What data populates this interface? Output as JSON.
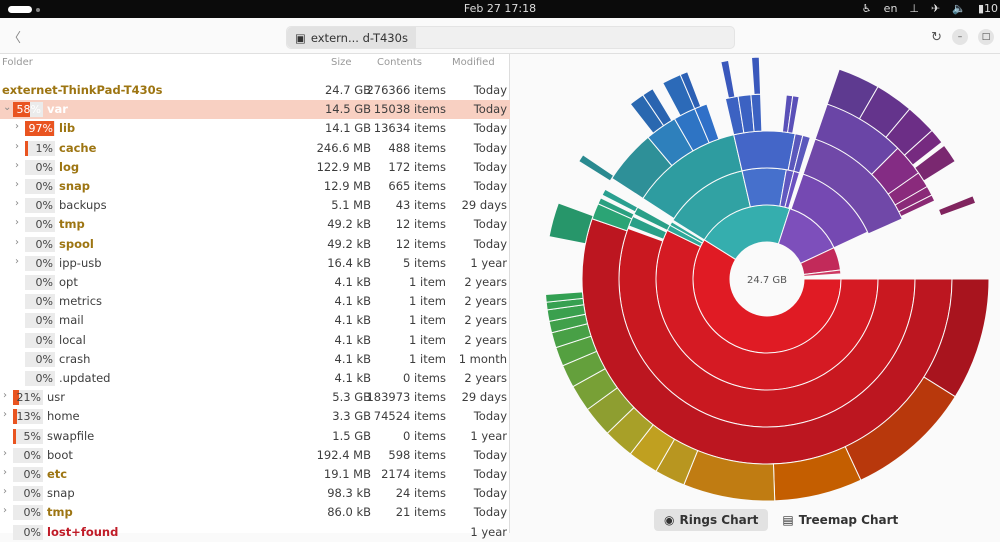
{
  "topbar": {
    "clock": "Feb 27  17:18",
    "lang": "en",
    "battery": "10"
  },
  "header": {
    "back_icon": "chevron-left",
    "location": "extern... d-T430s",
    "refresh_icon": "refresh",
    "min_icon": "minimize",
    "max_icon": "maximize"
  },
  "columns": {
    "folder": "Folder",
    "size": "Size",
    "contents": "Contents",
    "modified": "Modified"
  },
  "rows": [
    {
      "name": "externet-ThinkPad-T430s",
      "size": "24.7 GB",
      "contents": "276366 items",
      "modified": "Today",
      "depth": 0,
      "style": "gold"
    },
    {
      "name": "var",
      "pct": "58%",
      "fill": 58,
      "size": "14.5 GB",
      "contents": "15038 items",
      "modified": "Today",
      "depth": 1,
      "expanded": true,
      "selected": true,
      "style": "gold"
    },
    {
      "name": "lib",
      "pct": "97%",
      "fill": 97,
      "size": "14.1 GB",
      "contents": "13634 items",
      "modified": "Today",
      "depth": 2,
      "chev": true,
      "style": "gold"
    },
    {
      "name": "cache",
      "pct": "1%",
      "fill": 1,
      "size": "246.6 MB",
      "contents": "488 items",
      "modified": "Today",
      "depth": 2,
      "chev": true,
      "style": "gold"
    },
    {
      "name": "log",
      "pct": "0%",
      "fill": 0,
      "size": "122.9 MB",
      "contents": "172 items",
      "modified": "Today",
      "depth": 2,
      "chev": true,
      "style": "gold"
    },
    {
      "name": "snap",
      "pct": "0%",
      "fill": 0,
      "size": "12.9 MB",
      "contents": "665 items",
      "modified": "Today",
      "depth": 2,
      "chev": true,
      "style": "gold"
    },
    {
      "name": "backups",
      "pct": "0%",
      "fill": 0,
      "size": "5.1 MB",
      "contents": "43 items",
      "modified": "29 days",
      "depth": 2,
      "chev": true,
      "style": ""
    },
    {
      "name": "tmp",
      "pct": "0%",
      "fill": 0,
      "size": "49.2 kB",
      "contents": "12 items",
      "modified": "Today",
      "depth": 2,
      "chev": true,
      "style": "gold"
    },
    {
      "name": "spool",
      "pct": "0%",
      "fill": 0,
      "size": "49.2 kB",
      "contents": "12 items",
      "modified": "Today",
      "depth": 2,
      "chev": true,
      "style": "gold"
    },
    {
      "name": "ipp-usb",
      "pct": "0%",
      "fill": 0,
      "size": "16.4 kB",
      "contents": "5 items",
      "modified": "1 year",
      "depth": 2,
      "chev": true,
      "style": ""
    },
    {
      "name": "opt",
      "pct": "0%",
      "fill": 0,
      "size": "4.1 kB",
      "contents": "1 item",
      "modified": "2 years",
      "depth": 2,
      "style": ""
    },
    {
      "name": "metrics",
      "pct": "0%",
      "fill": 0,
      "size": "4.1 kB",
      "contents": "1 item",
      "modified": "2 years",
      "depth": 2,
      "style": ""
    },
    {
      "name": "mail",
      "pct": "0%",
      "fill": 0,
      "size": "4.1 kB",
      "contents": "1 item",
      "modified": "2 years",
      "depth": 2,
      "style": ""
    },
    {
      "name": "local",
      "pct": "0%",
      "fill": 0,
      "size": "4.1 kB",
      "contents": "1 item",
      "modified": "2 years",
      "depth": 2,
      "style": ""
    },
    {
      "name": "crash",
      "pct": "0%",
      "fill": 0,
      "size": "4.1 kB",
      "contents": "1 item",
      "modified": "1 month",
      "depth": 2,
      "style": ""
    },
    {
      "name": ".updated",
      "pct": "0%",
      "fill": 0,
      "size": "4.1 kB",
      "contents": "0 items",
      "modified": "2 years",
      "depth": 2,
      "style": ""
    },
    {
      "name": "usr",
      "pct": "21%",
      "fill": 21,
      "size": "5.3 GB",
      "contents": "183973 items",
      "modified": "29 days",
      "depth": 1,
      "chev": true,
      "style": ""
    },
    {
      "name": "home",
      "pct": "13%",
      "fill": 13,
      "size": "3.3 GB",
      "contents": "74524 items",
      "modified": "Today",
      "depth": 1,
      "chev": true,
      "style": ""
    },
    {
      "name": "swapfile",
      "pct": "5%",
      "fill": 5,
      "size": "1.5 GB",
      "contents": "0 items",
      "modified": "1 year",
      "depth": 1,
      "style": ""
    },
    {
      "name": "boot",
      "pct": "0%",
      "fill": 0,
      "size": "192.4 MB",
      "contents": "598 items",
      "modified": "Today",
      "depth": 1,
      "chev": true,
      "style": ""
    },
    {
      "name": "etc",
      "pct": "0%",
      "fill": 0,
      "size": "19.1 MB",
      "contents": "2174 items",
      "modified": "Today",
      "depth": 1,
      "chev": true,
      "style": "gold"
    },
    {
      "name": "snap",
      "pct": "0%",
      "fill": 0,
      "size": "98.3 kB",
      "contents": "24 items",
      "modified": "Today",
      "depth": 1,
      "chev": true,
      "style": ""
    },
    {
      "name": "tmp",
      "pct": "0%",
      "fill": 0,
      "size": "86.0 kB",
      "contents": "21 items",
      "modified": "Today",
      "depth": 1,
      "chev": true,
      "style": "gold"
    },
    {
      "name": "lost+found",
      "pct": "0%",
      "fill": 0,
      "size": "",
      "contents": "",
      "modified": "1 year",
      "depth": 1,
      "style": "red"
    }
  ],
  "chart": {
    "center_label": "24.7 GB",
    "rings_label": "Rings Chart",
    "treemap_label": "Treemap Chart"
  },
  "chart_data": {
    "type": "sunburst",
    "total": "24.7 GB",
    "segments": [
      {
        "ring": 1,
        "start_deg": 0,
        "end_deg": 212,
        "color": "#e01b24"
      },
      {
        "ring": 1,
        "start_deg": 212,
        "end_deg": 288,
        "color": "#35aeae"
      },
      {
        "ring": 1,
        "start_deg": 288,
        "end_deg": 335,
        "color": "#7d4fbb"
      },
      {
        "ring": 1,
        "start_deg": 335,
        "end_deg": 353,
        "color": "#c22a5a"
      },
      {
        "ring": 1,
        "start_deg": 353,
        "end_deg": 356,
        "color": "#cf3a63"
      },
      {
        "ring": 2,
        "start_deg": 0,
        "end_deg": 206,
        "color": "#d51a23"
      },
      {
        "ring": 2,
        "start_deg": 206,
        "end_deg": 209,
        "color": "#2fa898"
      },
      {
        "ring": 2,
        "start_deg": 209,
        "end_deg": 211,
        "color": "#2fa898"
      },
      {
        "ring": 2,
        "start_deg": 212,
        "end_deg": 257,
        "color": "#31a2a3"
      },
      {
        "ring": 2,
        "start_deg": 257,
        "end_deg": 280,
        "color": "#4670cc"
      },
      {
        "ring": 2,
        "start_deg": 280,
        "end_deg": 284,
        "color": "#6058c0"
      },
      {
        "ring": 2,
        "start_deg": 284,
        "end_deg": 287,
        "color": "#6a50c0"
      },
      {
        "ring": 2,
        "start_deg": 289,
        "end_deg": 335,
        "color": "#7549b2"
      },
      {
        "ring": 3,
        "start_deg": 0,
        "end_deg": 200,
        "color": "#c91820"
      },
      {
        "ring": 3,
        "start_deg": 201,
        "end_deg": 205,
        "color": "#2aa088"
      },
      {
        "ring": 3,
        "start_deg": 206,
        "end_deg": 209,
        "color": "#2aa088"
      },
      {
        "ring": 3,
        "start_deg": 213,
        "end_deg": 257,
        "color": "#2e9ca0"
      },
      {
        "ring": 3,
        "start_deg": 257,
        "end_deg": 281,
        "color": "#4466c8"
      },
      {
        "ring": 3,
        "start_deg": 281,
        "end_deg": 284,
        "color": "#5a58bc"
      },
      {
        "ring": 3,
        "start_deg": 284,
        "end_deg": 287,
        "color": "#5a58bc"
      },
      {
        "ring": 3,
        "start_deg": 289,
        "end_deg": 336,
        "color": "#7048a8"
      },
      {
        "ring": 4,
        "start_deg": 0,
        "end_deg": 199,
        "color": "#bc1620"
      },
      {
        "ring": 4,
        "start_deg": 199,
        "end_deg": 204,
        "color": "#2ba475"
      },
      {
        "ring": 4,
        "start_deg": 204,
        "end_deg": 206,
        "color": "#2aa080"
      },
      {
        "ring": 4,
        "start_deg": 207,
        "end_deg": 209,
        "color": "#2aa090"
      },
      {
        "ring": 4,
        "start_deg": 213,
        "end_deg": 230,
        "color": "#2e9098"
      },
      {
        "ring": 4,
        "start_deg": 230,
        "end_deg": 240,
        "color": "#2e80bc"
      },
      {
        "ring": 4,
        "start_deg": 240,
        "end_deg": 247,
        "color": "#2e74c4"
      },
      {
        "ring": 4,
        "start_deg": 247,
        "end_deg": 251,
        "color": "#3070c8"
      },
      {
        "ring": 4,
        "start_deg": 257,
        "end_deg": 261,
        "color": "#3c62c2"
      },
      {
        "ring": 4,
        "start_deg": 261,
        "end_deg": 265,
        "color": "#3c62c2"
      },
      {
        "ring": 4,
        "start_deg": 265,
        "end_deg": 268,
        "color": "#3c62c2"
      },
      {
        "ring": 4,
        "start_deg": 276,
        "end_deg": 278,
        "color": "#5a50b8"
      },
      {
        "ring": 4,
        "start_deg": 278,
        "end_deg": 280,
        "color": "#5a50b8"
      },
      {
        "ring": 4,
        "start_deg": 289,
        "end_deg": 315,
        "color": "#6a45a6"
      },
      {
        "ring": 4,
        "start_deg": 315,
        "end_deg": 325,
        "color": "#842c84"
      },
      {
        "ring": 4,
        "start_deg": 325,
        "end_deg": 330,
        "color": "#8a2a7c"
      },
      {
        "ring": 4,
        "start_deg": 330,
        "end_deg": 333,
        "color": "#8a2a78"
      },
      {
        "ring": 4,
        "start_deg": 333,
        "end_deg": 335,
        "color": "#8a2a74"
      },
      {
        "ring": 5,
        "start_deg": 0,
        "end_deg": 32,
        "color": "#a8141e"
      },
      {
        "ring": 5,
        "start_deg": 32,
        "end_deg": 65,
        "color": "#b8380c"
      },
      {
        "ring": 5,
        "start_deg": 65,
        "end_deg": 88,
        "color": "#c45e00"
      },
      {
        "ring": 5,
        "start_deg": 88,
        "end_deg": 112,
        "color": "#c07c12"
      },
      {
        "ring": 5,
        "start_deg": 112,
        "end_deg": 120,
        "color": "#b89620"
      },
      {
        "ring": 5,
        "start_deg": 120,
        "end_deg": 128,
        "color": "#c0a020"
      },
      {
        "ring": 5,
        "start_deg": 128,
        "end_deg": 136,
        "color": "#a8a028"
      },
      {
        "ring": 5,
        "start_deg": 136,
        "end_deg": 144,
        "color": "#8e9e30"
      },
      {
        "ring": 5,
        "start_deg": 144,
        "end_deg": 151,
        "color": "#78a036"
      },
      {
        "ring": 5,
        "start_deg": 151,
        "end_deg": 157,
        "color": "#64a03c"
      },
      {
        "ring": 5,
        "start_deg": 157,
        "end_deg": 162,
        "color": "#54a040"
      },
      {
        "ring": 5,
        "start_deg": 162,
        "end_deg": 166,
        "color": "#48a046"
      },
      {
        "ring": 5,
        "start_deg": 166,
        "end_deg": 169,
        "color": "#40a04a"
      },
      {
        "ring": 5,
        "start_deg": 169,
        "end_deg": 172,
        "color": "#3aa04e"
      },
      {
        "ring": 5,
        "start_deg": 172,
        "end_deg": 174,
        "color": "#36a050"
      },
      {
        "ring": 5,
        "start_deg": 174,
        "end_deg": 176,
        "color": "#32a052"
      },
      {
        "ring": 5,
        "start_deg": 191,
        "end_deg": 200,
        "color": "#27966a"
      },
      {
        "ring": 5,
        "start_deg": 212,
        "end_deg": 214,
        "color": "#2a8a90"
      },
      {
        "ring": 5,
        "start_deg": 232,
        "end_deg": 236,
        "color": "#2a68b0"
      },
      {
        "ring": 5,
        "start_deg": 236,
        "end_deg": 239,
        "color": "#2a64b0"
      },
      {
        "ring": 5,
        "start_deg": 242,
        "end_deg": 247,
        "color": "#2c6ab8"
      },
      {
        "ring": 5,
        "start_deg": 247,
        "end_deg": 249,
        "color": "#2c60b4"
      },
      {
        "ring": 5,
        "start_deg": 258,
        "end_deg": 260,
        "color": "#3a58bc"
      },
      {
        "ring": 5,
        "start_deg": 266,
        "end_deg": 268,
        "color": "#3a58bc"
      },
      {
        "ring": 5,
        "start_deg": 289,
        "end_deg": 300,
        "color": "#5e3a90"
      },
      {
        "ring": 5,
        "start_deg": 300,
        "end_deg": 310,
        "color": "#64348c"
      },
      {
        "ring": 5,
        "start_deg": 310,
        "end_deg": 318,
        "color": "#6c2e86"
      },
      {
        "ring": 5,
        "start_deg": 318,
        "end_deg": 322,
        "color": "#762a80"
      },
      {
        "ring": 5,
        "start_deg": 323,
        "end_deg": 328,
        "color": "#7a2870"
      },
      {
        "ring": 5,
        "start_deg": 338,
        "end_deg": 340,
        "color": "#80245e"
      }
    ]
  }
}
